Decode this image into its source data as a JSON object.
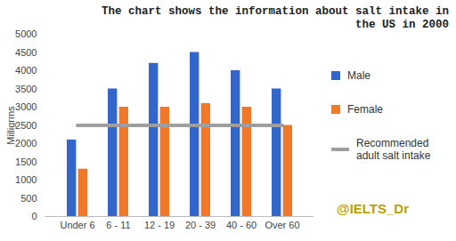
{
  "chart_data": {
    "type": "bar",
    "title": "The chart shows the information about salt intake in the US in 2000",
    "y_label": "Milligrms",
    "categories": [
      "Under 6",
      "6 - 11",
      "12 - 19",
      "20 - 39",
      "40 - 60",
      "Over 60"
    ],
    "series": [
      {
        "name": "Male",
        "color": "#3366cc",
        "values": [
          2100,
          3500,
          4200,
          4500,
          4000,
          3500
        ]
      },
      {
        "name": "Female",
        "color": "#f07828",
        "values": [
          1300,
          3000,
          3000,
          3100,
          3000,
          2500
        ]
      },
      {
        "name": "Recommended adult salt intake",
        "type": "line",
        "color": "#9e9e9e",
        "values": [
          2500,
          2500,
          2500,
          2500,
          2500,
          2500
        ]
      }
    ],
    "ylim": [
      0,
      5000
    ],
    "yticks": [
      0,
      500,
      1000,
      1500,
      2000,
      2500,
      3000,
      3500,
      4000,
      4500,
      5000
    ],
    "grid": false,
    "legend": "right",
    "annotations": [
      "@IELTS_Dr"
    ]
  }
}
